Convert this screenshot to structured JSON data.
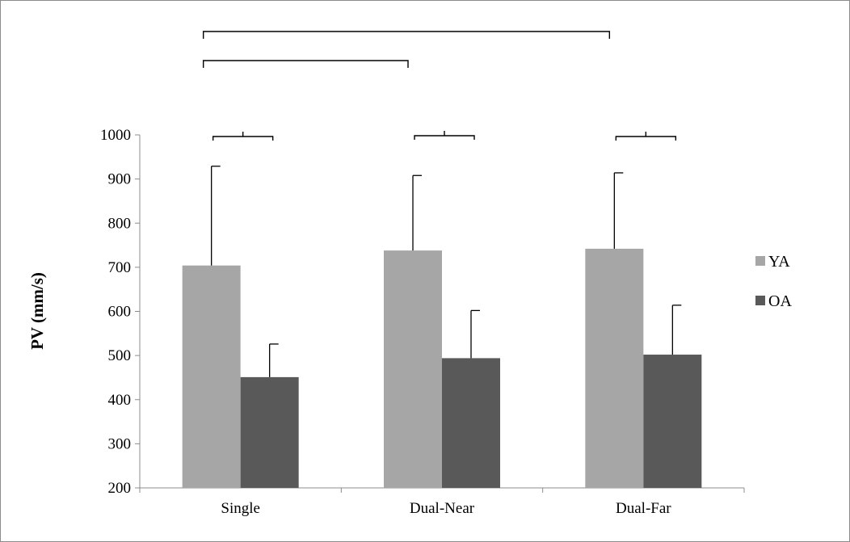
{
  "chart_data": {
    "type": "bar",
    "title": "",
    "xlabel": "",
    "ylabel": "PV (mm/s)",
    "ylim": [
      200,
      1000
    ],
    "yticks": [
      200,
      300,
      400,
      500,
      600,
      700,
      800,
      900,
      1000
    ],
    "grid": false,
    "legend_position": "right",
    "categories": [
      "Single",
      "Dual-Near",
      "Dual-Far"
    ],
    "series": [
      {
        "name": "YA",
        "color": "#a6a6a6",
        "values": [
          704,
          738,
          742
        ],
        "error": [
          225,
          170,
          172
        ]
      },
      {
        "name": "OA",
        "color": "#595959",
        "values": [
          451,
          494,
          502
        ],
        "error": [
          75,
          108,
          112
        ]
      }
    ],
    "significance_brackets": [
      {
        "type": "between-series",
        "category": 0
      },
      {
        "type": "between-series",
        "category": 1
      },
      {
        "type": "between-series",
        "category": 2
      },
      {
        "type": "between-categories",
        "from": 0,
        "to": 1
      },
      {
        "type": "between-categories",
        "from": 0,
        "to": 2
      }
    ]
  }
}
